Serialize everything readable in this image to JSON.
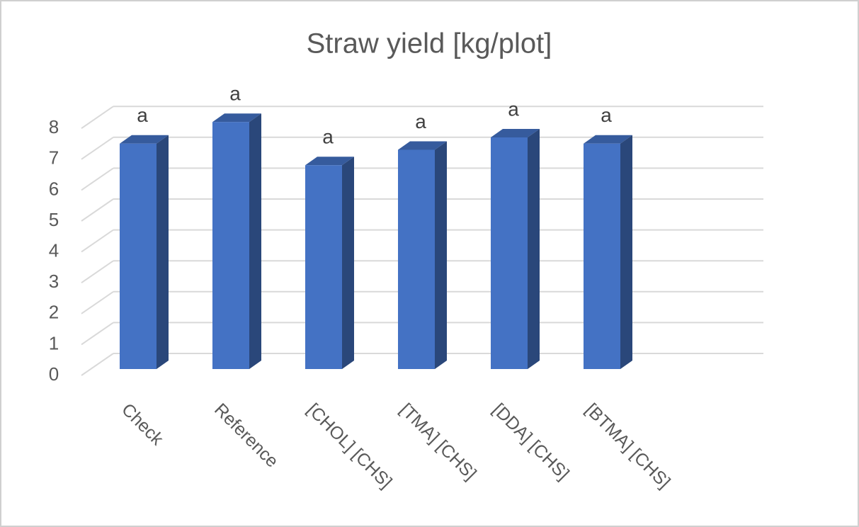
{
  "chart_data": {
    "type": "bar3d",
    "title": "Straw yield [kg/plot]",
    "categories": [
      "Check",
      "Reference",
      "[CHOL] [CHS]",
      "[TMA] [CHS]",
      "[DDA] [CHS]",
      "[BTMA] [CHS]"
    ],
    "values": [
      7.3,
      8.0,
      6.6,
      7.1,
      7.5,
      7.3
    ],
    "annotations": [
      "a",
      "a",
      "a",
      "a",
      "a",
      "a"
    ],
    "color": "#4472c4",
    "ylim": [
      0,
      8
    ],
    "yticks": [
      0,
      1,
      2,
      3,
      4,
      5,
      6,
      7,
      8
    ],
    "grid": true
  }
}
